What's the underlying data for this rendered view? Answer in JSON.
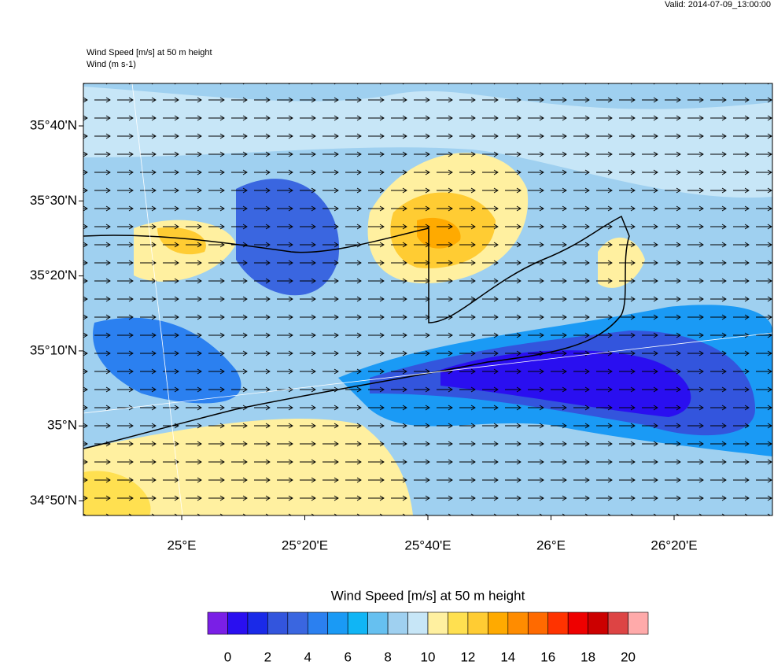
{
  "header": {
    "valid": "Valid: 2014-07-09_13:00:00"
  },
  "map": {
    "title": "Wind Speed [m/s] at 50 m height",
    "subtitle": "Wind   (m s-1)",
    "lat_labels": [
      "35°40'N",
      "35°30'N",
      "35°20'N",
      "35°10'N",
      "35°N",
      "34°50'N"
    ],
    "lon_labels": [
      "25°E",
      "25°20'E",
      "25°40'E",
      "26°E",
      "26°20'E"
    ]
  },
  "colorbar": {
    "title": "Wind Speed [m/s] at 50 m height",
    "colors": [
      "#7a1fe6",
      "#2a0ff0",
      "#1a2ae8",
      "#3355dd",
      "#3a66e0",
      "#2b80f0",
      "#1a9af5",
      "#10b5f5",
      "#66c0f0",
      "#9fd0f0",
      "#c7e6f7",
      "#fff0a0",
      "#ffe050",
      "#ffcc33",
      "#ffaa00",
      "#ff8c00",
      "#ff6a00",
      "#ff3300",
      "#ee0000",
      "#cc0000",
      "#dd4444",
      "#ffaaaa"
    ],
    "range": [
      -1,
      21
    ],
    "ticks": [
      0,
      2,
      4,
      6,
      8,
      10,
      12,
      14,
      16,
      18,
      20
    ]
  }
}
